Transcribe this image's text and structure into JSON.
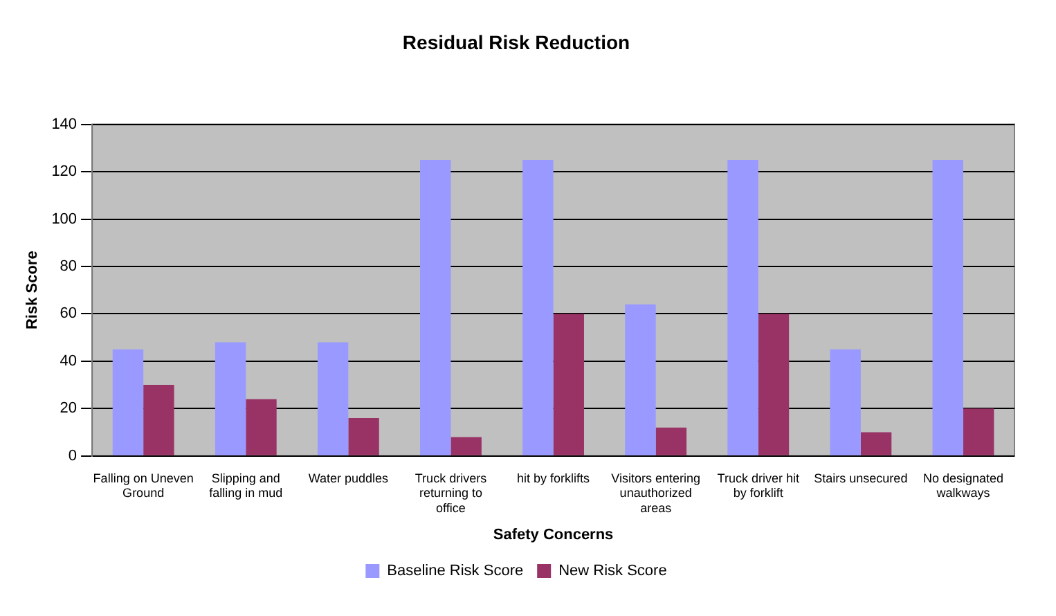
{
  "chart_data": {
    "type": "bar",
    "title": "Residual Risk Reduction",
    "xlabel": "Safety Concerns",
    "ylabel": "Risk Score",
    "categories": [
      "Falling on Uneven Ground",
      "Slipping and falling in mud",
      "Water puddles",
      "Truck drivers returning to office",
      "hit by forklifts",
      "Visitors entering unauthorized areas",
      "Truck driver hit by forklift",
      "Stairs unsecured",
      "No designated walkways"
    ],
    "series": [
      {
        "name": "Baseline Risk Score",
        "color": "#9999ff",
        "values": [
          45,
          48,
          48,
          125,
          125,
          64,
          125,
          45,
          125
        ]
      },
      {
        "name": "New Risk Score",
        "color": "#993366",
        "values": [
          30,
          24,
          16,
          8,
          60,
          12,
          60,
          10,
          20
        ]
      }
    ],
    "ylim": [
      0,
      140
    ],
    "yticks": [
      0,
      20,
      40,
      60,
      80,
      100,
      120,
      140
    ],
    "grid": "y",
    "legend": "bottom"
  }
}
